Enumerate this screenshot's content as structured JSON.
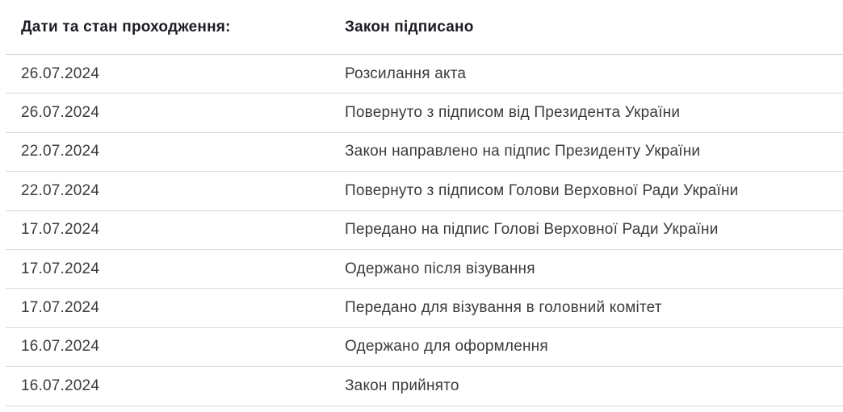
{
  "table": {
    "header": {
      "col1": "Дати та стан проходження:",
      "col2": "Закон підписано"
    },
    "rows": [
      {
        "date": "26.07.2024",
        "status": "Розсилання акта"
      },
      {
        "date": "26.07.2024",
        "status": "Повернуто з підписом від Президента України"
      },
      {
        "date": "22.07.2024",
        "status": "Закон направлено на підпис Президенту України"
      },
      {
        "date": "22.07.2024",
        "status": "Повернуто з підписом Голови Верховної Ради України"
      },
      {
        "date": "17.07.2024",
        "status": "Передано на підпис Голові Верховної Ради України"
      },
      {
        "date": "17.07.2024",
        "status": "Одержано після візування"
      },
      {
        "date": "17.07.2024",
        "status": "Передано для візування в головний комітет"
      },
      {
        "date": "16.07.2024",
        "status": "Одержано для оформлення"
      },
      {
        "date": "16.07.2024",
        "status": "Закон прийнято"
      }
    ]
  },
  "colors": {
    "background": "#ffffff",
    "header_text": "#1c1c24",
    "body_text": "#3b3b3d",
    "divider": "#dadada"
  }
}
